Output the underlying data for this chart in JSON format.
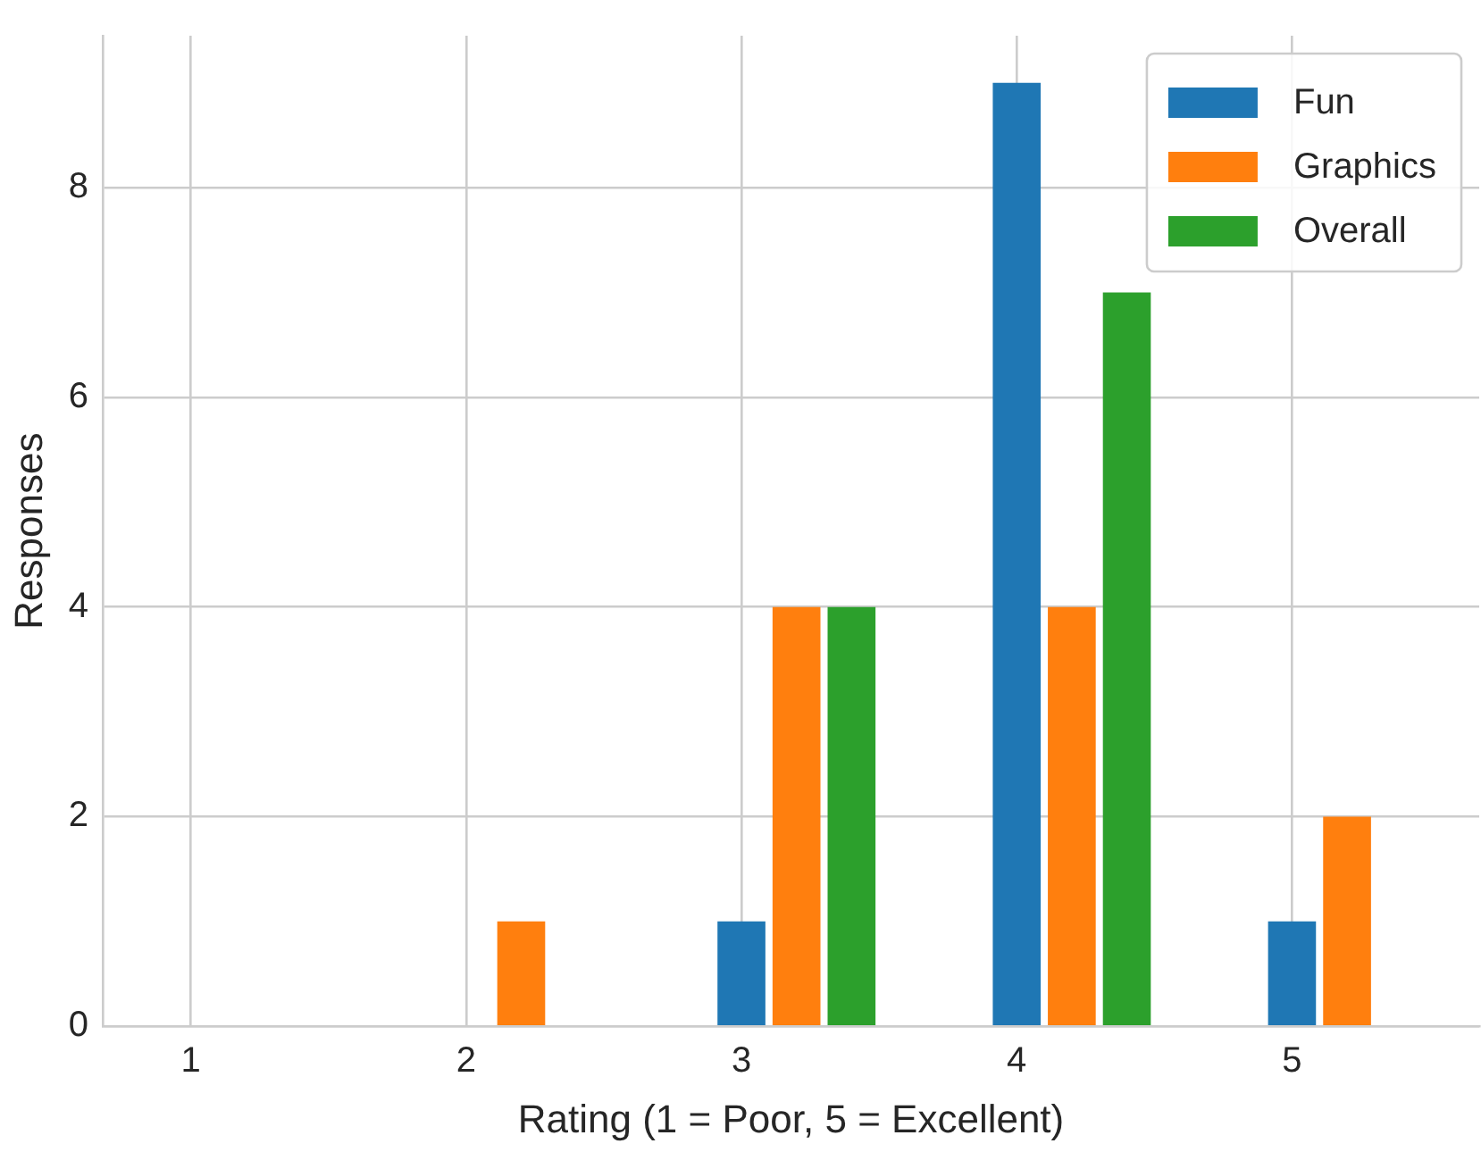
{
  "chart_data": {
    "type": "bar",
    "xlabel": "Rating (1 = Poor, 5 = Excellent)",
    "ylabel": "Responses",
    "series": [
      {
        "name": "Fun",
        "color": "#1f77b4",
        "x": [
          3,
          4,
          5
        ],
        "values": [
          1,
          9,
          1
        ]
      },
      {
        "name": "Graphics",
        "color": "#ff7f0e",
        "x": [
          2.2,
          3.2,
          4.2,
          5.2
        ],
        "values": [
          1,
          4,
          4,
          2
        ]
      },
      {
        "name": "Overall",
        "color": "#2ca02c",
        "x": [
          3.4,
          4.4
        ],
        "values": [
          4,
          7
        ]
      }
    ],
    "xlim": [
      0.68,
      5.68
    ],
    "xticks": [
      1,
      2,
      3,
      4,
      5
    ],
    "ylim": [
      0,
      9.45
    ],
    "yticks": [
      0,
      2,
      4,
      6,
      8
    ],
    "grid": true,
    "legend": "top right"
  }
}
